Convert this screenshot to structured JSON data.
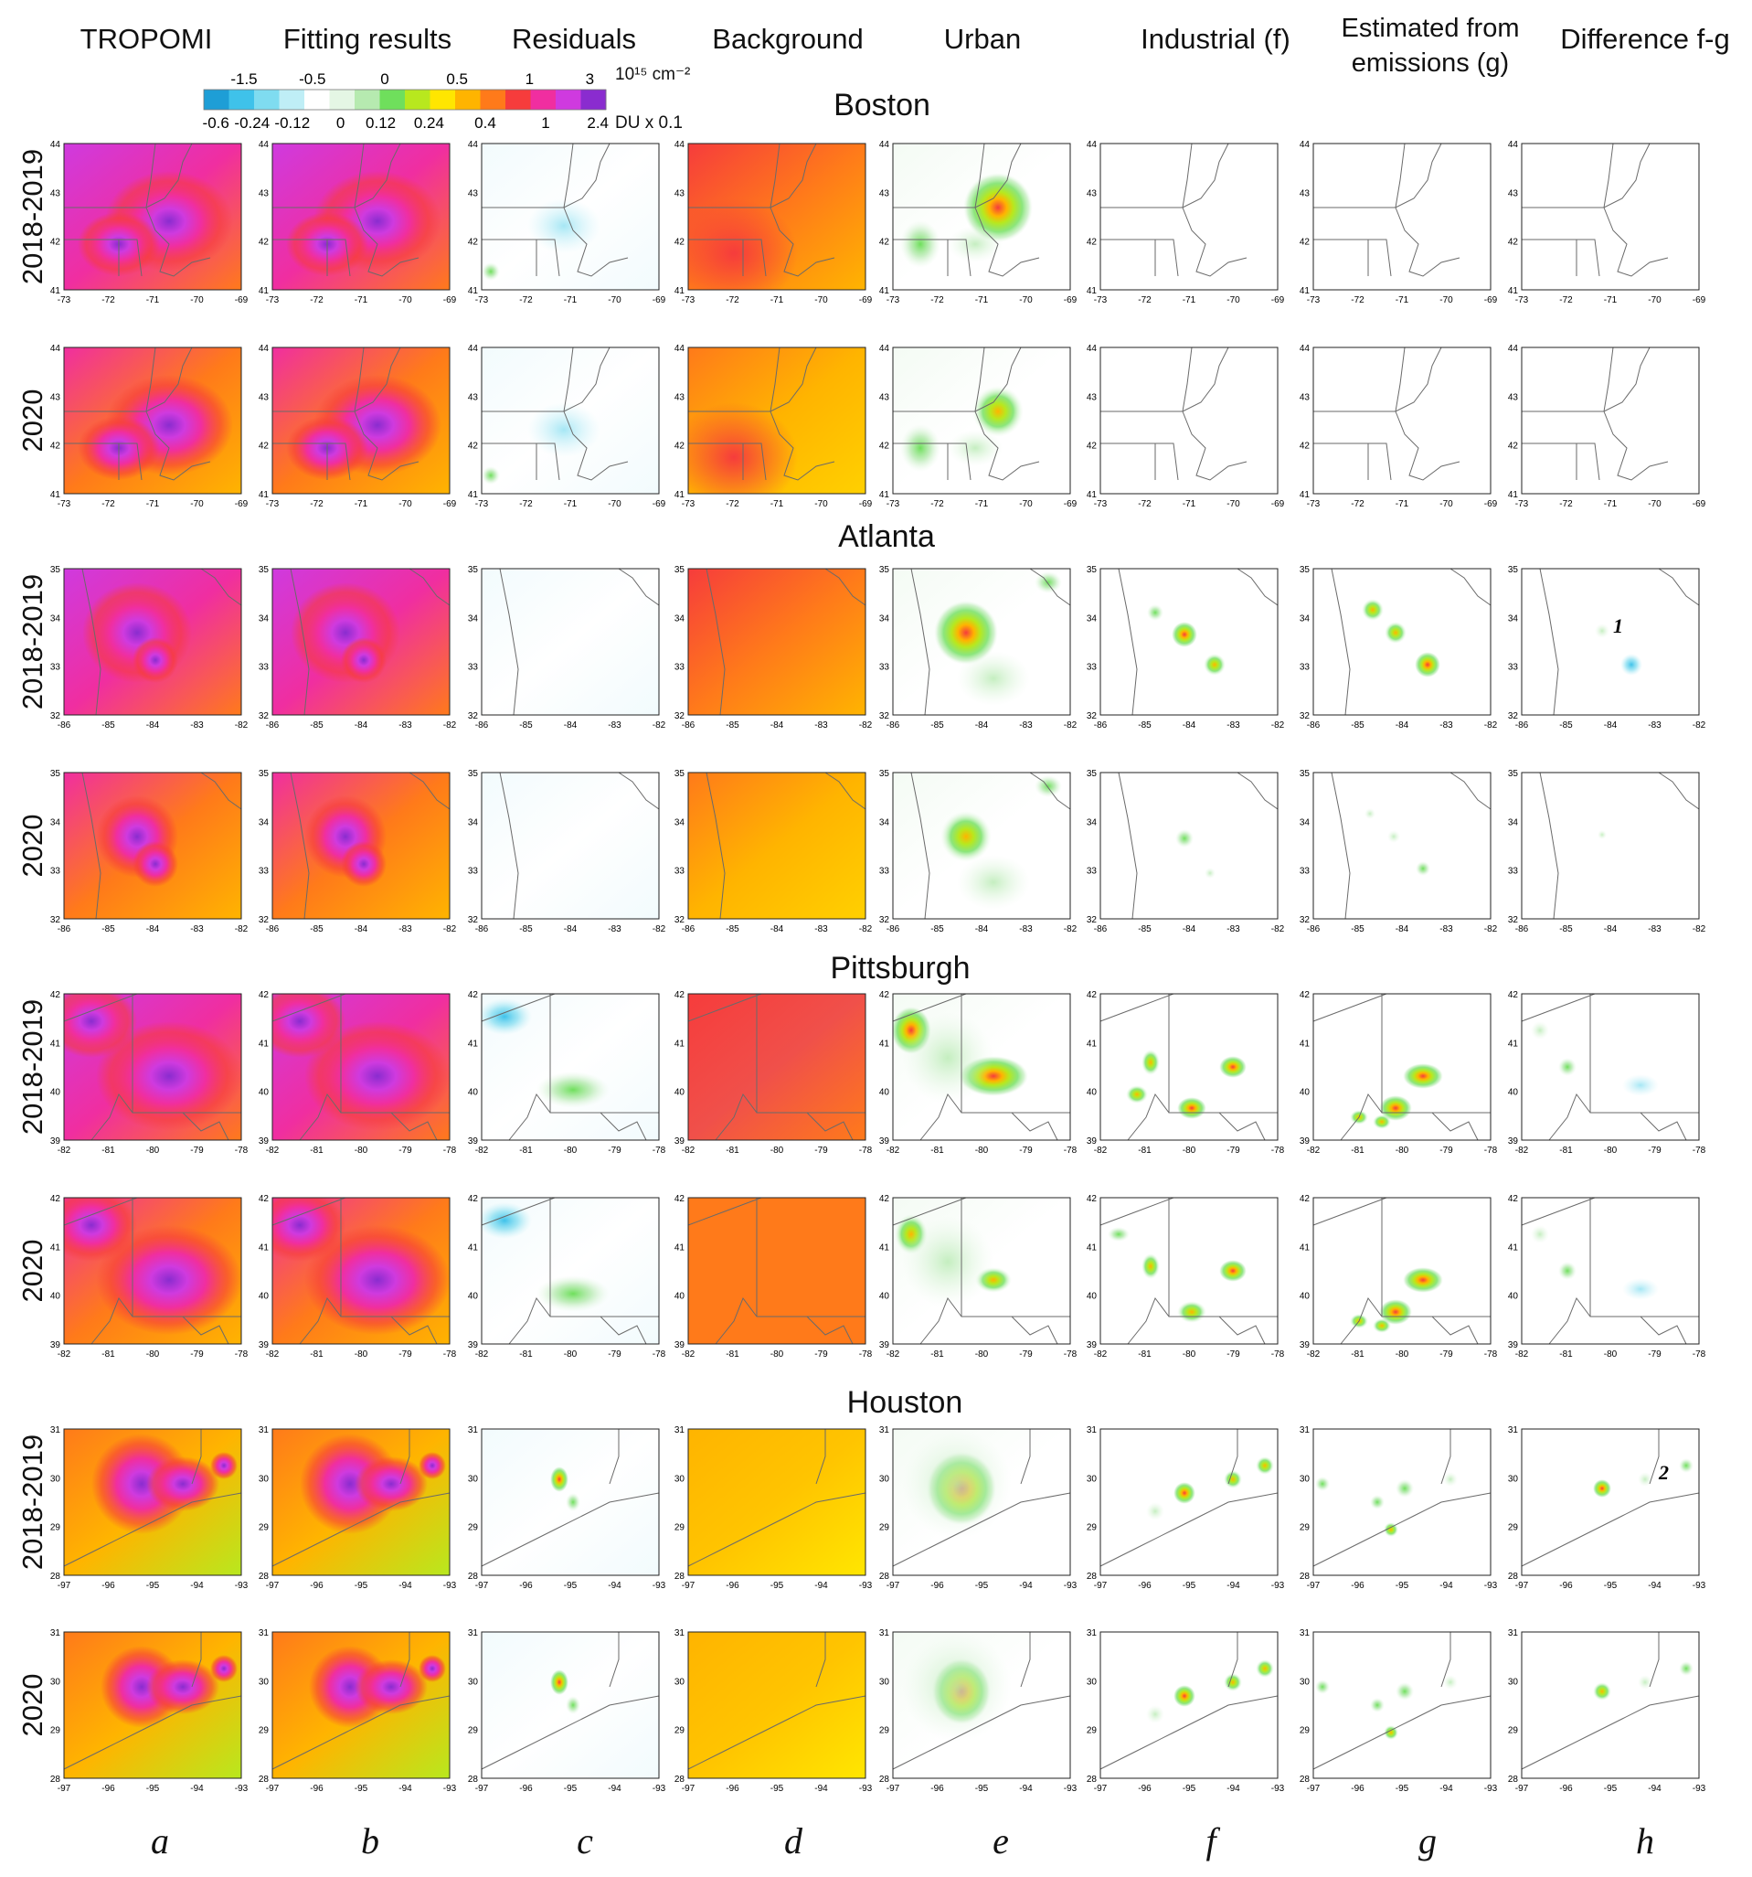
{
  "column_headers": [
    {
      "id": "a",
      "title": "TROPOMI"
    },
    {
      "id": "b",
      "title": "Fitting results"
    },
    {
      "id": "c",
      "title": "Residuals"
    },
    {
      "id": "d",
      "title": "Background"
    },
    {
      "id": "e",
      "title": "Urban"
    },
    {
      "id": "f",
      "title": "Industrial (f)"
    },
    {
      "id": "g",
      "title": "Estimated from emissions (g)"
    },
    {
      "id": "h",
      "title": "Difference f-g"
    }
  ],
  "column_letters": [
    "a",
    "b",
    "c",
    "d",
    "e",
    "f",
    "g",
    "h"
  ],
  "colorbar": {
    "top_ticks": [
      "-1.5",
      "-0.5",
      "0",
      "0.5",
      "1",
      "3"
    ],
    "top_unit": "10¹⁵ cm⁻²",
    "bottom_ticks": [
      "-0.6",
      "-0.24",
      "-0.12",
      "0",
      "0.12",
      "0.24",
      "0.4",
      "1",
      "2.4"
    ],
    "bottom_unit": "DU x  0.1",
    "colors": [
      "#1e9ed6",
      "#3fc2ea",
      "#7fdcf0",
      "#bfeef6",
      "#ffffff",
      "#e4f6e4",
      "#b6eab0",
      "#6fdf5c",
      "#b8e81e",
      "#ffe600",
      "#ffb400",
      "#ff7a1a",
      "#f63c3c",
      "#f02ea0",
      "#cf3adf",
      "#8a2ccf"
    ]
  },
  "chart_data": {
    "type": "heatmap",
    "value_scale_colors": "colorbar",
    "cities": [
      {
        "name": "Boston",
        "xticks": [
          "-73",
          "-72",
          "-71",
          "-70",
          "-69"
        ],
        "yticks": [
          "41",
          "42",
          "43",
          "44"
        ],
        "rows": [
          {
            "label": "2018-2019"
          },
          {
            "label": "2020"
          }
        ]
      },
      {
        "name": "Atlanta",
        "xticks": [
          "-86",
          "-85",
          "-84",
          "-83",
          "-82"
        ],
        "yticks": [
          "32",
          "33",
          "34",
          "35"
        ],
        "rows": [
          {
            "label": "2018-2019"
          },
          {
            "label": "2020"
          }
        ]
      },
      {
        "name": "Pittsburgh",
        "xticks": [
          "-82",
          "-81",
          "-80",
          "-79",
          "-78"
        ],
        "yticks": [
          "39",
          "40",
          "41",
          "42"
        ],
        "rows": [
          {
            "label": "2018-2019"
          },
          {
            "label": "2020"
          }
        ]
      },
      {
        "name": "Houston",
        "xticks": [
          "-97",
          "-96",
          "-95",
          "-94",
          "-93"
        ],
        "yticks": [
          "28",
          "29",
          "30",
          "31"
        ],
        "rows": [
          {
            "label": "2018-2019"
          },
          {
            "label": "2020"
          }
        ]
      }
    ],
    "annotations": [
      {
        "city": "Atlanta",
        "row": "2018-2019",
        "panel": "h",
        "text": "1"
      },
      {
        "city": "Houston",
        "row": "2018-2019",
        "panel": "h",
        "text": "2"
      }
    ]
  }
}
